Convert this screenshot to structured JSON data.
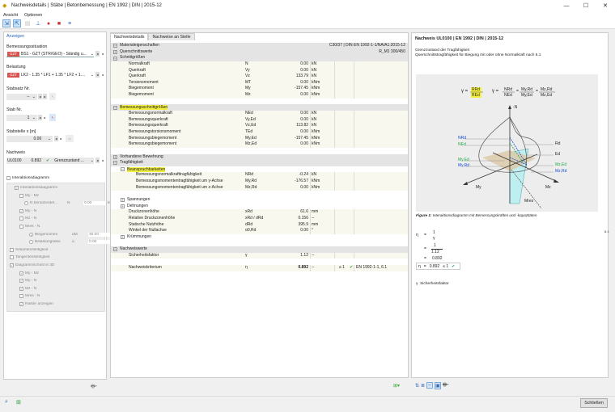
{
  "window": {
    "title": "Nachweisdetails | Stäbe | Betonbemessung | EN 1992 | DIN | 2015-12",
    "minimize": "—",
    "maximize": "☐",
    "close": "✕"
  },
  "menu": [
    "Ansicht",
    "Optionen"
  ],
  "left": {
    "group_title": "Anzeigen",
    "design_situation_label": "Bemessungssituation",
    "design_situation_badge": "GZT",
    "design_situation_value": "BS1 - GZT (STR/GEO) - Ständig u...",
    "loading_label": "Belastung",
    "loading_badge": "GZT",
    "loading_value": "LK2 - 1.35 * LF1 + 1.35 * LF2 + 1....",
    "member_set_label": "Stabsatz Nr.",
    "member_set_value": "--",
    "member_label": "Stab Nr.",
    "member_value": "1",
    "location_label": "Stabstelle x [m]",
    "location_value": "0.00",
    "check_label": "Nachweis",
    "check_id": "UL0100",
    "check_ratio": "0.892",
    "check_type": "Grenzzustand ...",
    "interaction_label": "Interaktionsdiagramm",
    "tree": [
      {
        "label": "Interaktionsdiagramm",
        "checked": true
      },
      {
        "label": "My - Mz",
        "checked": false
      },
      {
        "label": "N benutzerdef...",
        "sym": "N",
        "val": "0.00",
        "unit": "kN"
      },
      {
        "label": "My - N",
        "checked": true
      },
      {
        "label": "Mz - N",
        "checked": false
      },
      {
        "label": "Mres - N",
        "checked": false
      },
      {
        "label": "Biegemomen",
        "sym": "αM",
        "val": "45.00",
        "unit": "°"
      },
      {
        "label": "Belastungsebe",
        "sym": "α",
        "val": "0.00",
        "unit": "°"
      },
      {
        "label": "Sekantensteifigkeit",
        "checked": false
      },
      {
        "label": "Tangentensteifigkeit",
        "checked": false
      },
      {
        "label": "Diagrammschnitt in 3D",
        "checked": true
      },
      {
        "label": "My - Mz",
        "checked": true
      },
      {
        "label": "My - N",
        "checked": true
      },
      {
        "label": "Mz - N",
        "checked": true
      },
      {
        "label": "Mres - N",
        "checked": false
      },
      {
        "label": "Raster anzeigen",
        "checked": true
      }
    ]
  },
  "mid": {
    "tabs": [
      "Nachweisdetails",
      "Nachweise an Stelle"
    ],
    "rows": [
      {
        "t": "sec",
        "l": "Materialeigenschaften",
        "x": "−",
        "r": "C30/37 | DIN EN 1992-1-1/NA/A1:2015-12"
      },
      {
        "t": "sec",
        "l": "Querschnittswerte",
        "x": "+",
        "r": "R_M1 300/450"
      },
      {
        "t": "sec",
        "l": "Schnittgrößen",
        "x": "−"
      },
      {
        "t": "data",
        "i": 1,
        "l": "Normalkraft",
        "s": "N",
        "v": "0.00",
        "u": "kN"
      },
      {
        "t": "data",
        "i": 1,
        "l": "Querkraft",
        "s": "Vy",
        "v": "0.00",
        "u": "kN"
      },
      {
        "t": "data",
        "i": 1,
        "l": "Querkraft",
        "s": "Vz",
        "v": "133.79",
        "u": "kN"
      },
      {
        "t": "data",
        "i": 1,
        "l": "Torsionsmoment",
        "s": "MT",
        "v": "0.00",
        "u": "kNm"
      },
      {
        "t": "data",
        "i": 1,
        "l": "Biegemoment",
        "s": "My",
        "v": "-157.45",
        "u": "kNm"
      },
      {
        "t": "data",
        "i": 1,
        "l": "Biegemoment",
        "s": "Mz",
        "v": "0.00",
        "u": "kNm"
      },
      {
        "t": "blank"
      },
      {
        "t": "sec",
        "l": "Bemessungsschnittgrößen",
        "x": "−",
        "h": true
      },
      {
        "t": "data",
        "i": 1,
        "l": "Bemessungsnormalkraft",
        "s": "NEd",
        "v": "0.00",
        "u": "kN"
      },
      {
        "t": "data",
        "i": 1,
        "l": "Bemessungsquerkraft",
        "s": "Vy,Ed",
        "v": "0.00",
        "u": "kN"
      },
      {
        "t": "data",
        "i": 1,
        "l": "Bemessungsquerkraft",
        "s": "Vz,Ed",
        "v": "113.82",
        "u": "kN"
      },
      {
        "t": "data",
        "i": 1,
        "l": "Bemessungstorsionsmoment",
        "s": "TEd",
        "v": "0.00",
        "u": "kNm"
      },
      {
        "t": "data",
        "i": 1,
        "l": "Bemessungsbiegemoment",
        "s": "My,Ed",
        "v": "-157.45",
        "u": "kNm"
      },
      {
        "t": "data",
        "i": 1,
        "l": "Bemessungsbiegemoment",
        "s": "Mz,Ed",
        "v": "0.00",
        "u": "kNm"
      },
      {
        "t": "blank"
      },
      {
        "t": "sec",
        "l": "Vorhandene Bewehrung",
        "x": "+"
      },
      {
        "t": "sec",
        "l": "Tragfähigkeit",
        "x": "−"
      },
      {
        "t": "sub",
        "i": 1,
        "l": "Beanspruchbarkeiten",
        "x": "−",
        "h": true
      },
      {
        "t": "data",
        "i": 2,
        "l": "Bemessungsnormalkrafttragfähigkeit",
        "s": "NRd",
        "v": "-0.24",
        "u": "kN"
      },
      {
        "t": "data",
        "i": 2,
        "l": "Bemessungsmomententragfähigkeit um y-Achse",
        "s": "My,Rd",
        "v": "-176.57",
        "u": "kNm"
      },
      {
        "t": "data",
        "i": 2,
        "l": "Bemessungsmomententragfähigkeit um z-Achse",
        "s": "Mz,Rd",
        "v": "0.00",
        "u": "kNm"
      },
      {
        "t": "blank"
      },
      {
        "t": "sub",
        "i": 1,
        "l": "Spannungen",
        "x": "+"
      },
      {
        "t": "sub",
        "i": 1,
        "l": "Dehnungen",
        "x": "+"
      },
      {
        "t": "data",
        "i": 1,
        "l": "Druckzonenhöhe",
        "s": "xRd",
        "v": "61.6",
        "u": "mm"
      },
      {
        "t": "data",
        "i": 1,
        "l": "Relative Druckzonenhöhe",
        "s": "xRd / dRd",
        "v": "0.156",
        "u": "--"
      },
      {
        "t": "data",
        "i": 1,
        "l": "Statische Nutzhöhe",
        "s": "dRd",
        "v": "395.9",
        "u": "mm"
      },
      {
        "t": "data",
        "i": 1,
        "l": "Winkel der Nullachse",
        "s": "α0,Rd",
        "v": "0.00",
        "u": "°"
      },
      {
        "t": "sub",
        "i": 1,
        "l": "Krümmungen",
        "x": "+"
      },
      {
        "t": "blank"
      },
      {
        "t": "sec",
        "l": "Nachweiswerte",
        "x": "−"
      },
      {
        "t": "data",
        "i": 1,
        "l": "Sicherheitsfaktor",
        "s": "γ",
        "v": "1.12",
        "u": "--"
      },
      {
        "t": "blank"
      },
      {
        "t": "data",
        "i": 1,
        "l": "Nachweiskriterium",
        "s": "η",
        "v": "0.892",
        "u": "--",
        "b": true,
        "c": "≤ 1",
        "ok": "✔",
        "ref": "EN 1992-1-1, 6.1"
      }
    ]
  },
  "right": {
    "title": "Nachweis UL0100 | EN 1992 | DIN | 2015-12",
    "subtitle1": "Grenzzustand der Tragfähigkeit",
    "subtitle2": "Querschnittstragfähigkeit für Biegung mit oder ohne Normalkraft nach 6.1",
    "formula": {
      "g1": "γ =",
      "rrd": "RRd",
      "red": "REd",
      "g2": "γ =",
      "nrd": "NRd",
      "ned": "NEd",
      "myrd": "My,Rd",
      "myed": "My,Ed",
      "mzrd": "Mz,Rd",
      "mzed": "Mz,Ed",
      "eq": "="
    },
    "diagram_labels": {
      "n": "-N",
      "nrd": "NRd",
      "ned": "NEd",
      "rd": "Rd",
      "ed": "Ed",
      "myed": "My,Ed",
      "myrd": "My,Rd",
      "mzed": "Mz,Ed",
      "mzrd": "Mz,Rd",
      "my": "My",
      "mz": "Mz",
      "mres": "Mres"
    },
    "figure_caption_bold": "Figure 1:",
    "figure_caption": "Interaktionsdiagramm mit Bemessungskräften und -kapazitäten",
    "calc": {
      "eta": "η",
      "eq": "=",
      "one": "1",
      "gamma": "γ",
      "g_val": "1.12",
      "result": "0.892",
      "final_eta": "η",
      "final_val": "0.892",
      "le": "≤ 1",
      "ok": "✔"
    },
    "side_ref": "6.1",
    "legend_sym": "γ",
    "legend_text": "Sicherheitsfaktor"
  },
  "footer": {
    "close": "Schließen"
  },
  "colors": {
    "highlight": "#f4f040",
    "badge": "#d9534f",
    "ok": "#2a9a3a",
    "blue": "#1a4fd0",
    "green": "#22a84a"
  }
}
